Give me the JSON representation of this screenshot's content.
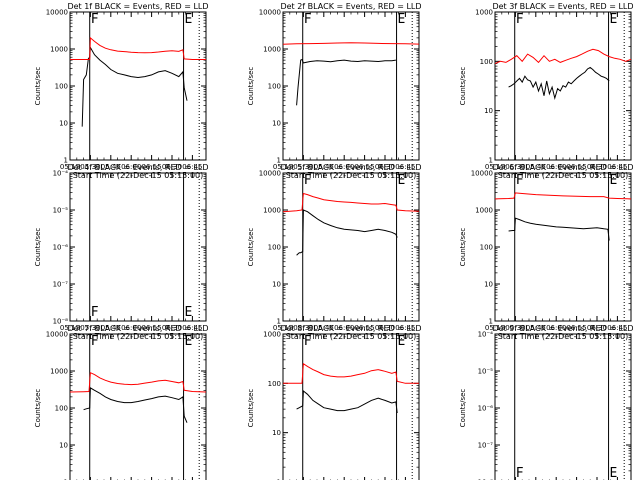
{
  "figure": {
    "x_ticks": [
      "05:15",
      "05:30",
      "05:45",
      "06:00",
      "06:15",
      "06:30",
      "06:45"
    ],
    "x_label": "Start Time (22-Dec-15 05:15:00)",
    "y_label": "Counts/sec",
    "marker_start": "F",
    "marker_end": "E"
  },
  "colors": {
    "events": "#000000",
    "lld": "#ff0000",
    "axes": "#000000"
  },
  "chart_data": [
    {
      "type": "line",
      "title": "Det 1f BLACK = Events, RED = LLD",
      "yscale": "log",
      "ylim": [
        1,
        10000
      ],
      "y_tick_labels": [
        "1",
        "10",
        "100",
        "1000",
        "10000"
      ],
      "xlim_minutes": [
        0,
        100
      ],
      "markers": {
        "start_min": 14.5,
        "end_min": 83.5
      },
      "series": [
        {
          "name": "Events",
          "color": "black",
          "x_minutes": [
            9,
            10,
            12,
            13.5,
            14.5,
            15,
            18,
            22,
            26,
            30,
            35,
            40,
            45,
            50,
            55,
            60,
            65,
            70,
            75,
            80,
            83,
            84,
            85,
            86
          ],
          "y": [
            8,
            150,
            200,
            550,
            600,
            1100,
            700,
            500,
            380,
            280,
            220,
            200,
            180,
            170,
            180,
            200,
            240,
            260,
            220,
            180,
            240,
            90,
            60,
            40
          ]
        },
        {
          "name": "LLD",
          "color": "red",
          "x_minutes": [
            0,
            14.5,
            15,
            18,
            22,
            26,
            30,
            35,
            40,
            45,
            50,
            55,
            60,
            65,
            70,
            75,
            80,
            83,
            84,
            90,
            100
          ],
          "y": [
            520,
            520,
            2000,
            1600,
            1250,
            1050,
            950,
            880,
            850,
            820,
            800,
            790,
            800,
            830,
            870,
            900,
            860,
            950,
            540,
            520,
            520
          ]
        }
      ]
    },
    {
      "type": "line",
      "title": "Det 2f BLACK = Events, RED = LLD",
      "yscale": "log",
      "ylim": [
        1,
        10000
      ],
      "y_tick_labels": [
        "1",
        "10",
        "100",
        "1000",
        "10000"
      ],
      "xlim_minutes": [
        0,
        100
      ],
      "markers": {
        "start_min": 14.5,
        "end_min": 83.5
      },
      "series": [
        {
          "name": "Events",
          "color": "black",
          "x_minutes": [
            10,
            11,
            13,
            14,
            15,
            20,
            25,
            30,
            35,
            40,
            45,
            50,
            55,
            60,
            65,
            70,
            75,
            80,
            83
          ],
          "y": [
            30,
            90,
            500,
            520,
            420,
            460,
            480,
            470,
            450,
            480,
            500,
            470,
            460,
            480,
            470,
            460,
            480,
            480,
            500
          ]
        },
        {
          "name": "LLD",
          "color": "red",
          "x_minutes": [
            0,
            10,
            20,
            30,
            40,
            50,
            60,
            70,
            80,
            90,
            100
          ],
          "y": [
            1350,
            1380,
            1400,
            1420,
            1450,
            1470,
            1450,
            1420,
            1400,
            1380,
            1360
          ]
        }
      ]
    },
    {
      "type": "line",
      "title": "Det 3f BLACK = Events, RED = LLD",
      "yscale": "log",
      "ylim": [
        1,
        1000
      ],
      "y_tick_labels": [
        "1",
        "10",
        "100",
        "1000"
      ],
      "xlim_minutes": [
        0,
        100
      ],
      "markers": {
        "start_min": 14.5,
        "end_min": 83.5
      },
      "series": [
        {
          "name": "Events",
          "color": "black",
          "x_minutes": [
            10,
            12,
            14,
            16,
            18,
            20,
            22,
            24,
            26,
            28,
            30,
            32,
            34,
            36,
            38,
            40,
            42,
            44,
            46,
            48,
            50,
            52,
            54,
            56,
            58,
            60,
            62,
            64,
            66,
            68,
            70,
            72,
            74,
            76,
            78,
            80,
            82,
            84
          ],
          "y": [
            30,
            32,
            35,
            40,
            45,
            38,
            50,
            42,
            40,
            30,
            38,
            25,
            35,
            20,
            40,
            22,
            30,
            18,
            28,
            25,
            32,
            30,
            38,
            35,
            40,
            45,
            50,
            55,
            60,
            70,
            75,
            68,
            60,
            55,
            50,
            48,
            45,
            40
          ]
        },
        {
          "name": "LLD",
          "color": "red",
          "x_minutes": [
            0,
            4,
            8,
            12,
            16,
            20,
            24,
            28,
            32,
            36,
            40,
            44,
            48,
            52,
            56,
            60,
            64,
            68,
            72,
            76,
            80,
            84,
            88,
            92,
            96,
            100
          ],
          "y": [
            90,
            100,
            95,
            110,
            130,
            100,
            140,
            120,
            95,
            130,
            100,
            110,
            95,
            105,
            115,
            125,
            140,
            160,
            175,
            165,
            140,
            125,
            115,
            110,
            100,
            110
          ]
        }
      ]
    },
    {
      "type": "line",
      "title": "Det 4f BLACK = Events, RED = LLD",
      "yscale": "log",
      "ylim": [
        1e-08,
        0.0001
      ],
      "y_tick_labels": [
        "10⁻⁸",
        "10⁻⁷",
        "10⁻⁶",
        "10⁻⁵",
        "10⁻⁴"
      ],
      "xlim_minutes": [
        0,
        100
      ],
      "markers": {
        "start_min": 14.5,
        "end_min": 83.5
      },
      "series": []
    },
    {
      "type": "line",
      "title": "Det 5f BLACK = Events, RED = LLD",
      "yscale": "log",
      "ylim": [
        1,
        10000
      ],
      "y_tick_labels": [
        "1",
        "10",
        "100",
        "1000",
        "10000"
      ],
      "xlim_minutes": [
        0,
        100
      ],
      "markers": {
        "start_min": 14.5,
        "end_min": 83.5
      },
      "series": [
        {
          "name": "Events",
          "color": "black",
          "x_minutes": [
            10,
            11,
            12,
            13,
            14.5,
            15,
            18,
            22,
            26,
            30,
            35,
            40,
            45,
            50,
            55,
            60,
            65,
            70,
            75,
            80,
            83,
            84
          ],
          "y": [
            60,
            65,
            70,
            70,
            75,
            1000,
            900,
            700,
            550,
            450,
            380,
            330,
            300,
            290,
            280,
            260,
            280,
            300,
            280,
            250,
            220,
            180
          ]
        },
        {
          "name": "LLD",
          "color": "red",
          "x_minutes": [
            0,
            10,
            14,
            15,
            18,
            22,
            26,
            30,
            35,
            40,
            45,
            50,
            55,
            60,
            65,
            70,
            75,
            80,
            83,
            84,
            90,
            100
          ],
          "y": [
            900,
            950,
            1000,
            2800,
            2600,
            2300,
            2100,
            1900,
            1800,
            1700,
            1650,
            1600,
            1550,
            1500,
            1450,
            1450,
            1500,
            1400,
            1350,
            1000,
            950,
            920
          ]
        }
      ]
    },
    {
      "type": "line",
      "title": "Det 6f BLACK = Events, RED = LLD",
      "yscale": "log",
      "ylim": [
        1,
        10000
      ],
      "y_tick_labels": [
        "1",
        "10",
        "100",
        "1000",
        "10000"
      ],
      "xlim_minutes": [
        0,
        100
      ],
      "markers": {
        "start_min": 14.5,
        "end_min": 83.5
      },
      "series": [
        {
          "name": "Events",
          "color": "black",
          "x_minutes": [
            10,
            13,
            14.5,
            15,
            18,
            22,
            26,
            30,
            35,
            40,
            45,
            50,
            55,
            60,
            65,
            70,
            75,
            80,
            83,
            84
          ],
          "y": [
            270,
            280,
            280,
            600,
            550,
            480,
            440,
            410,
            390,
            370,
            350,
            340,
            330,
            320,
            310,
            320,
            330,
            310,
            300,
            150
          ]
        },
        {
          "name": "LLD",
          "color": "red",
          "x_minutes": [
            0,
            10,
            14,
            15,
            20,
            30,
            40,
            50,
            60,
            70,
            80,
            84,
            90,
            100
          ],
          "y": [
            2000,
            2050,
            2100,
            2900,
            2800,
            2600,
            2500,
            2400,
            2350,
            2300,
            2300,
            2100,
            2050,
            2000
          ]
        }
      ]
    },
    {
      "type": "line",
      "title": "Det 7f BLACK = Events, RED = LLD",
      "yscale": "log",
      "ylim": [
        1,
        10000
      ],
      "y_tick_labels": [
        "1",
        "10",
        "100",
        "1000",
        "10000"
      ],
      "xlim_minutes": [
        0,
        100
      ],
      "markers": {
        "start_min": 14.5,
        "end_min": 83.5
      },
      "series": [
        {
          "name": "Events",
          "color": "black",
          "x_minutes": [
            10,
            12,
            14.5,
            15,
            18,
            22,
            26,
            30,
            35,
            40,
            45,
            50,
            55,
            60,
            65,
            70,
            75,
            80,
            83,
            84,
            86
          ],
          "y": [
            90,
            95,
            100,
            350,
            300,
            250,
            200,
            170,
            150,
            140,
            140,
            150,
            165,
            180,
            200,
            210,
            190,
            170,
            200,
            60,
            40
          ]
        },
        {
          "name": "LLD",
          "color": "red",
          "x_minutes": [
            0,
            10,
            14,
            15,
            18,
            22,
            26,
            30,
            35,
            40,
            45,
            50,
            55,
            60,
            65,
            70,
            75,
            80,
            83,
            84,
            90,
            100
          ],
          "y": [
            270,
            275,
            280,
            900,
            800,
            650,
            560,
            500,
            460,
            440,
            430,
            440,
            470,
            500,
            540,
            560,
            520,
            480,
            520,
            300,
            280,
            270
          ]
        }
      ]
    },
    {
      "type": "line",
      "title": "Det 8f BLACK = Events, RED = LLD",
      "yscale": "log",
      "ylim": [
        1,
        1000
      ],
      "y_tick_labels": [
        "1",
        "10",
        "100",
        "1000"
      ],
      "xlim_minutes": [
        0,
        100
      ],
      "markers": {
        "start_min": 14.5,
        "end_min": 83.5
      },
      "series": [
        {
          "name": "Events",
          "color": "black",
          "x_minutes": [
            10,
            12,
            14.5,
            15,
            18,
            22,
            26,
            30,
            35,
            40,
            45,
            50,
            55,
            60,
            65,
            70,
            75,
            80,
            83,
            84
          ],
          "y": [
            30,
            32,
            35,
            70,
            60,
            45,
            38,
            32,
            30,
            28,
            28,
            30,
            32,
            38,
            45,
            50,
            45,
            40,
            42,
            25
          ]
        },
        {
          "name": "LLD",
          "color": "red",
          "x_minutes": [
            0,
            10,
            14,
            15,
            18,
            22,
            26,
            30,
            35,
            40,
            45,
            50,
            55,
            60,
            65,
            70,
            75,
            80,
            83,
            84,
            90,
            100
          ],
          "y": [
            100,
            100,
            100,
            250,
            220,
            190,
            170,
            150,
            140,
            135,
            135,
            140,
            150,
            160,
            180,
            190,
            175,
            160,
            170,
            110,
            100,
            100
          ]
        }
      ]
    },
    {
      "type": "line",
      "title": "Det 9f BLACK = Events, RED = LLD",
      "yscale": "log",
      "ylim": [
        1e-08,
        0.0001
      ],
      "y_tick_labels": [
        "10⁻⁸",
        "10⁻⁷",
        "10⁻⁶",
        "10⁻⁵",
        "10⁻⁴"
      ],
      "xlim_minutes": [
        0,
        100
      ],
      "markers": {
        "start_min": 14.5,
        "end_min": 83.5
      },
      "series": []
    }
  ]
}
